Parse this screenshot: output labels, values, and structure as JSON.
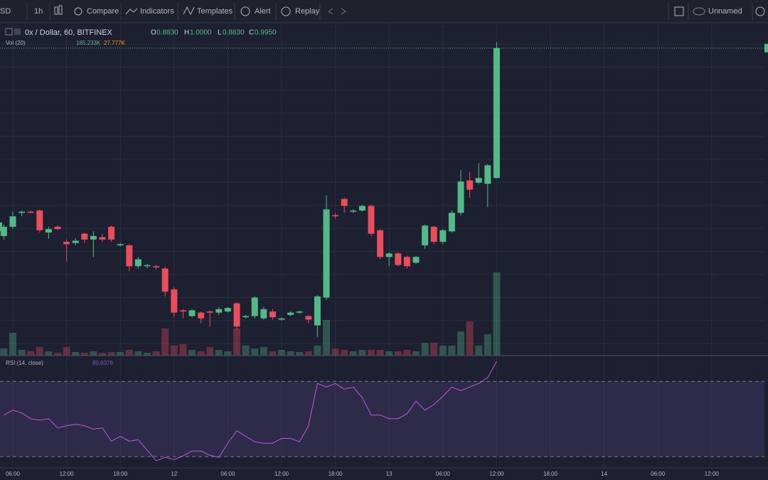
{
  "toolbar": {
    "symbol": "SD",
    "interval": "1h",
    "compare": "Compare",
    "indicators": "Indicators",
    "templates": "Templates",
    "alert": "Alert",
    "replay": "Replay",
    "layout": "Unnamed"
  },
  "chart_data": {
    "type": "candlestick",
    "legend": {
      "symbol": "0x / Dollar, 60, BITFINEX",
      "o_key": "O",
      "o": "0.8830",
      "h_key": "H",
      "h": "1.0000",
      "l_key": "L",
      "l": "0.8830",
      "c_key": "C",
      "c": "0.9950"
    },
    "volume_legend": {
      "name": "Vol (20)",
      "value": "165.233K",
      "ma": "27.777K"
    },
    "rsi_legend": {
      "name": "RSI (14, close)"
    },
    "categories": [
      null,
      "06:00",
      null,
      null,
      null,
      null,
      null,
      "12:00",
      null,
      null,
      null,
      null,
      null,
      "18:00",
      null,
      null,
      null,
      null,
      null,
      "12",
      null,
      null,
      null,
      null,
      null,
      "06:00",
      null,
      null,
      null,
      null,
      null,
      "12:00",
      null,
      null,
      null,
      null,
      null,
      "18:00",
      null,
      null,
      null,
      null,
      null,
      "13",
      null,
      null,
      null,
      null,
      null,
      "06:00",
      null,
      null,
      null,
      null,
      null,
      "12:00"
    ],
    "future_labels": [
      "18:00",
      "14",
      "06:00",
      "12:00"
    ],
    "open": [
      0.833,
      0.841,
      0.853,
      0.854,
      0.855,
      0.836,
      0.841,
      0.828,
      0.827,
      0.835,
      0.83,
      0.832,
      0.841,
      0.825,
      0.825,
      0.807,
      0.807,
      0.807,
      0.805,
      0.787,
      0.769,
      0.764,
      0.767,
      0.768,
      0.767,
      0.768,
      0.775,
      0.763,
      0.764,
      0.762,
      0.768,
      0.761,
      0.765,
      0.767,
      0.764,
      0.756,
      0.78,
      0.851,
      0.865,
      0.854,
      0.855,
      0.859,
      0.838,
      0.815,
      0.818,
      0.815,
      0.81,
      0.825,
      0.841,
      0.828,
      0.837,
      0.853,
      0.881,
      0.879,
      0.878,
      0.883
    ],
    "high": [
      0.843,
      0.854,
      0.855,
      0.855,
      0.856,
      0.841,
      0.842,
      0.83,
      0.831,
      0.836,
      0.837,
      0.835,
      0.842,
      0.827,
      0.826,
      0.815,
      0.809,
      0.808,
      0.807,
      0.789,
      0.77,
      0.77,
      0.768,
      0.769,
      0.772,
      0.772,
      0.776,
      0.765,
      0.781,
      0.772,
      0.77,
      0.763,
      0.768,
      0.769,
      0.765,
      0.782,
      0.868,
      0.853,
      0.866,
      0.856,
      0.86,
      0.86,
      0.839,
      0.819,
      0.819,
      0.816,
      0.816,
      0.843,
      0.842,
      0.839,
      0.855,
      0.89,
      0.888,
      0.896,
      0.895,
      1.0
    ],
    "low": [
      0.83,
      0.839,
      0.85,
      0.853,
      0.836,
      0.831,
      0.838,
      0.811,
      0.825,
      0.827,
      0.815,
      0.828,
      0.828,
      0.824,
      0.803,
      0.805,
      0.805,
      0.804,
      0.781,
      0.763,
      0.762,
      0.763,
      0.758,
      0.755,
      0.765,
      0.767,
      0.752,
      0.762,
      0.762,
      0.761,
      0.761,
      0.76,
      0.764,
      0.766,
      0.758,
      0.746,
      0.778,
      0.848,
      0.853,
      0.853,
      0.854,
      0.833,
      0.813,
      0.807,
      0.807,
      0.805,
      0.809,
      0.822,
      0.826,
      0.826,
      0.836,
      0.851,
      0.866,
      0.878,
      0.858,
      0.883
    ],
    "close": [
      0.841,
      0.85,
      0.854,
      0.853,
      0.838,
      0.839,
      0.839,
      0.826,
      0.829,
      0.83,
      0.833,
      0.83,
      0.83,
      0.826,
      0.807,
      0.813,
      0.808,
      0.806,
      0.785,
      0.767,
      0.768,
      0.769,
      0.762,
      0.767,
      0.77,
      0.771,
      0.755,
      0.764,
      0.78,
      0.77,
      0.763,
      0.762,
      0.767,
      0.768,
      0.761,
      0.781,
      0.856,
      0.85,
      0.859,
      0.855,
      0.859,
      0.835,
      0.815,
      0.818,
      0.808,
      0.807,
      0.815,
      0.842,
      0.828,
      0.838,
      0.853,
      0.88,
      0.873,
      0.883,
      0.894,
      0.995
    ],
    "volume": [
      14100,
      45200,
      11300,
      8500,
      16900,
      8500,
      5600,
      16900,
      7100,
      5600,
      8500,
      5600,
      7100,
      7100,
      11300,
      8500,
      5600,
      8500,
      53700,
      19800,
      22600,
      11300,
      8500,
      16900,
      11300,
      8500,
      53700,
      19800,
      14100,
      16900,
      8500,
      11300,
      8500,
      7100,
      8500,
      19800,
      70600,
      14100,
      11300,
      8500,
      11300,
      11300,
      11300,
      8500,
      8500,
      11300,
      8500,
      25400,
      25400,
      19800,
      19800,
      48000,
      67800,
      19800,
      42400,
      165233
    ],
    "rsi": [
      52.1,
      54.7,
      53.2,
      50.2,
      49.4,
      50.2,
      45.3,
      46.4,
      47.2,
      46.4,
      44.6,
      45.3,
      38.2,
      40.8,
      38.2,
      39.0,
      33.4,
      27.8,
      29.6,
      28.5,
      30.4,
      33.0,
      33.0,
      30.7,
      29.6,
      37.1,
      43.8,
      40.8,
      37.9,
      37.1,
      37.1,
      39.7,
      39.7,
      37.9,
      46.4,
      68.9,
      67.0,
      68.9,
      65.9,
      67.0,
      61.4,
      52.1,
      52.1,
      50.2,
      50.2,
      52.8,
      59.5,
      54.7,
      57.7,
      62.1,
      67.0,
      65.1,
      67.0,
      68.9,
      72.0,
      80.6376
    ],
    "ylim": [
      0.73,
      1.015
    ],
    "vlim": [
      0,
      657000
    ],
    "rsi_lim": [
      24,
      83
    ],
    "rsi_bands": [
      30,
      70
    ],
    "up_color": "#53b987",
    "down_color": "#eb4d5c",
    "rsi_color": "#c158dc",
    "grid": true
  }
}
